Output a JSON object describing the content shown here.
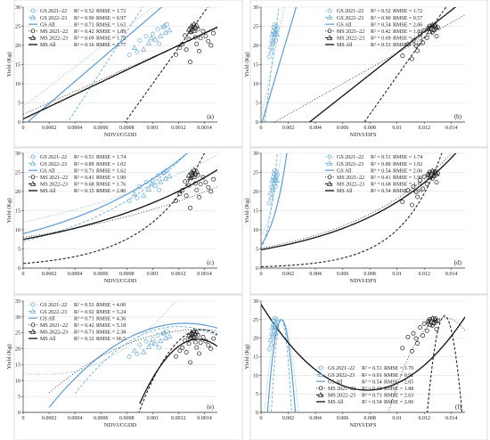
{
  "figure": {
    "note": "Six-panel figure of yield vs vegetation index with fitted models"
  },
  "chart_data": [
    {
      "type": "scatter",
      "panel_label": "(a)",
      "xlabel": "NDVI/CGDD",
      "ylabel": "Yield (Kg)",
      "xlim": [
        0,
        0.0015
      ],
      "ylim": [
        0,
        30
      ],
      "xticks": [
        0,
        0.0002,
        0.0004,
        0.0006,
        0.0008,
        0.001,
        0.0012,
        0.0014
      ],
      "xtick_labels": [
        "0",
        "0.0002",
        "0.0004",
        "0.0006",
        "0.0008",
        "0.001",
        "0.0012",
        "0.0014"
      ],
      "yticks": [
        0,
        5,
        10,
        15,
        20,
        25,
        30
      ],
      "ytick_labels": [
        "0",
        "5",
        "10",
        "15",
        "20",
        "25",
        "30"
      ],
      "legend_position": "top-left",
      "legend": [
        {
          "label": "GS 2021–22",
          "r2": "R² = 0.52",
          "rmse": "RMSE = 1.72"
        },
        {
          "label": "GS 2022–23",
          "r2": "R² = 0.90",
          "rmse": "RMSE = 0.97"
        },
        {
          "label": "GS All",
          "r2": "R² = 0.71",
          "rmse": "RMSE = 1.63"
        },
        {
          "label": "MS 2021–22",
          "r2": "R² = 0.42",
          "rmse": "RMSE = 1.89"
        },
        {
          "label": "MS 2022–23",
          "r2": "R² = 0.69",
          "rmse": "RMSE = 1.72"
        },
        {
          "label": "MS All",
          "r2": "R² = 0.16",
          "rmse": "RMSE = 2.77"
        }
      ]
    },
    {
      "type": "scatter",
      "panel_label": "(b)",
      "xlabel": "NDVI/DFS",
      "ylabel": "Yield (Kg)",
      "xlim": [
        0,
        0.015
      ],
      "ylim": [
        0,
        30
      ],
      "xticks": [
        0,
        0.002,
        0.004,
        0.006,
        0.008,
        0.01,
        0.012,
        0.014
      ],
      "xtick_labels": [
        "0",
        "0.002",
        "0.004",
        "0.006",
        "0.008",
        "0.01",
        "0.012",
        "0.014"
      ],
      "yticks": [
        0,
        5,
        10,
        15,
        20,
        25,
        30
      ],
      "ytick_labels": [
        "0",
        "5",
        "10",
        "15",
        "20",
        "25",
        "30"
      ],
      "legend_position": "top-right",
      "legend": [
        {
          "label": "GS 2021–22",
          "r2": "R² = 0.52",
          "rmse": "RMSE = 1.72"
        },
        {
          "label": "GS 2022–23",
          "r2": "R² = 0.90",
          "rmse": "RMSE = 0.57"
        },
        {
          "label": "GS All",
          "r2": "R² = 0.54",
          "rmse": "RMSE = 2.06"
        },
        {
          "label": "MS 2021–22",
          "r2": "R² = 0.42",
          "rmse": "RMSE = 1.89"
        },
        {
          "label": "MS 2022–23",
          "r2": "R² = 0.69",
          "rmse": "RMSE = 1.72"
        },
        {
          "label": "MS All",
          "r2": "R² = 0.53",
          "rmse": "RMSE = 2.07"
        }
      ]
    },
    {
      "type": "scatter",
      "panel_label": "(c)",
      "xlabel": "NDVI/CGDD",
      "ylabel": "Yield (Kg)",
      "xlim": [
        0,
        0.0015
      ],
      "ylim": [
        0,
        30
      ],
      "xticks": [
        0,
        0.0002,
        0.0004,
        0.0006,
        0.0008,
        0.001,
        0.0012,
        0.0014
      ],
      "xtick_labels": [
        "0",
        "0.0002",
        "0.0004",
        "0.0006",
        "0.0008",
        "0.001",
        "0.0012",
        "0.0014"
      ],
      "yticks": [
        0,
        5,
        10,
        15,
        20,
        25,
        30
      ],
      "ytick_labels": [
        "0",
        "5",
        "10",
        "15",
        "20",
        "25",
        "30"
      ],
      "legend_position": "top-left",
      "legend": [
        {
          "label": "GS 2021–22",
          "r2": "R² = 0.51",
          "rmse": "RMSE = 1.74"
        },
        {
          "label": "GS 2022–23",
          "r2": "R² = 0.89",
          "rmse": "RMSE = 1.02"
        },
        {
          "label": "GS All",
          "r2": "R² = 0.71",
          "rmse": "RMSE = 1.62"
        },
        {
          "label": "MS 2021–22",
          "r2": "R² = 0.41",
          "rmse": "RMSE = 1.90"
        },
        {
          "label": "MS 2022–23",
          "r2": "R² = 0.68",
          "rmse": "RMSE = 1.76"
        },
        {
          "label": "MS All",
          "r2": "R² = 0.15",
          "rmse": "RMSE = 2.80"
        }
      ]
    },
    {
      "type": "scatter",
      "panel_label": "(d)",
      "xlabel": "NDVI/DFS",
      "ylabel": "Yield (Kg)",
      "xlim": [
        0,
        0.015
      ],
      "ylim": [
        0,
        30
      ],
      "xticks": [
        0,
        0.002,
        0.004,
        0.006,
        0.008,
        0.01,
        0.012,
        0.014
      ],
      "xtick_labels": [
        "0",
        "0.002",
        "0.004",
        "0.006",
        "0.008",
        "0.01",
        "0.012",
        "0.014"
      ],
      "yticks": [
        0,
        5,
        10,
        15,
        20,
        25,
        30
      ],
      "ytick_labels": [
        "0",
        "5",
        "10",
        "15",
        "20",
        "25",
        "30"
      ],
      "legend_position": "top-right",
      "legend": [
        {
          "label": "GS 2021–22",
          "r2": "R² = 0.51",
          "rmse": "RMSE = 1.74"
        },
        {
          "label": "GS 2022–23",
          "r2": "R² = 0.89",
          "rmse": "RMSE = 1.02"
        },
        {
          "label": "GS All",
          "r2": "R² = 0.54",
          "rmse": "RMSE = 2.06"
        },
        {
          "label": "MS 2021–22",
          "r2": "R² = 0.41",
          "rmse": "RMSE = 1.90"
        },
        {
          "label": "MS 2022–23",
          "r2": "R² = 0.68",
          "rmse": "RMSE = 1.76"
        },
        {
          "label": "MS All",
          "r2": "R² = 0.54",
          "rmse": "RMSE = 2.06"
        }
      ]
    },
    {
      "type": "scatter",
      "panel_label": "(e)",
      "xlabel": "NDVI/CGDD",
      "ylabel": "Yield (Kg)",
      "xlim": [
        0,
        0.0015
      ],
      "ylim": [
        0,
        35
      ],
      "xticks": [
        0,
        0.0002,
        0.0004,
        0.0006,
        0.0008,
        0.001,
        0.0012,
        0.0014
      ],
      "xtick_labels": [
        "0",
        "0.0002",
        "0.0004",
        "0.0006",
        "0.0008",
        "0.001",
        "0.0012",
        "0.0014"
      ],
      "yticks": [
        0,
        5,
        10,
        15,
        20,
        25,
        30,
        35
      ],
      "ytick_labels": [
        "0",
        "5",
        "10",
        "15",
        "20",
        "25",
        "30",
        "35"
      ],
      "legend_position": "top-left",
      "legend": [
        {
          "label": "GS 2021–22",
          "r2": "R² = 0.53",
          "rmse": "RMSE = 4.00"
        },
        {
          "label": "GS 2022–23",
          "r2": "R² = 0.92",
          "rmse": "RMSE = 5.24"
        },
        {
          "label": "GS All",
          "r2": "R² = 0.71",
          "rmse": "RMSE = 4.36"
        },
        {
          "label": "MS 2021–22",
          "r2": "R² = 0.42",
          "rmse": "RMSE = 5.18"
        },
        {
          "label": "MS 2022–23",
          "r2": "R² = 0.71",
          "rmse": "RMSE = 2.38"
        },
        {
          "label": "MS All",
          "r2": "R² = 0.32",
          "rmse": "RMSE = 66.5"
        }
      ]
    },
    {
      "type": "scatter",
      "panel_label": "(f)",
      "xlabel": "NDVI/DFS",
      "ylabel": "Yield (Kg)",
      "xlim": [
        0,
        0.015
      ],
      "ylim": [
        0,
        30
      ],
      "xticks": [
        0,
        0.002,
        0.004,
        0.006,
        0.008,
        0.01,
        0.012,
        0.014
      ],
      "xtick_labels": [
        "0",
        "0.002",
        "0.004",
        "0.006",
        "0.008",
        "0.01",
        "0.012",
        "0.014"
      ],
      "yticks": [
        0,
        5,
        10,
        15,
        20,
        25,
        30
      ],
      "ytick_labels": [
        "0",
        "5",
        "10",
        "15",
        "20",
        "25",
        "30"
      ],
      "legend_position": "bottom-center",
      "legend": [
        {
          "label": "GS 2021–22",
          "r2": "R² = 0.53",
          "rmse": "RMSE = 1.70"
        },
        {
          "label": "GS 2022–23",
          "r2": "R² = 0.91",
          "rmse": "RMSE = 0.92"
        },
        {
          "label": "GS All",
          "r2": "R² = 0.54",
          "rmse": "RMSE = 2.05"
        },
        {
          "label": "MS 2021–22",
          "r2": "R² = 0.42",
          "rmse": "RMSE = 1.88"
        },
        {
          "label": "MS 2022–23",
          "r2": "R² = 0.71",
          "rmse": "RMSE = 2.63"
        },
        {
          "label": "MS All",
          "r2": "R² = 0.54",
          "rmse": "RMSE = 2.06"
        }
      ]
    }
  ],
  "series_styles": [
    {
      "marker": "circle",
      "color": "#6baed6",
      "dash": "1,2",
      "width": 0.8
    },
    {
      "marker": "triangle",
      "color": "#6baed6",
      "dash": "3,2",
      "width": 0.9
    },
    {
      "marker": "none",
      "color": "#5b9bd5",
      "dash": "",
      "width": 1.2
    },
    {
      "marker": "circle",
      "color": "#222222",
      "dash": "1,2",
      "width": 0.8
    },
    {
      "marker": "triangle",
      "color": "#222222",
      "dash": "3,2",
      "width": 1.1
    },
    {
      "marker": "none",
      "color": "#111111",
      "dash": "",
      "width": 1.3
    }
  ],
  "gs_points_cgdd": [
    [
      0.00082,
      17.5
    ],
    [
      0.00086,
      19.4
    ],
    [
      0.0009,
      21.3
    ],
    [
      0.00093,
      19.0
    ],
    [
      0.00095,
      22.4
    ],
    [
      0.00097,
      20.6
    ],
    [
      0.001,
      23.0
    ],
    [
      0.00102,
      21.6
    ],
    [
      0.00104,
      24.2
    ],
    [
      0.00106,
      22.5
    ],
    [
      0.00108,
      24.8
    ],
    [
      0.0011,
      23.4
    ],
    [
      0.00111,
      25.5
    ],
    [
      0.00113,
      24.0
    ],
    [
      0.00088,
      18.3
    ],
    [
      0.00099,
      21.9
    ],
    [
      0.00105,
      20.4
    ],
    [
      0.00109,
      25.1
    ]
  ],
  "gs_points_dfs": [
    [
      0.0006,
      17.0
    ],
    [
      0.0007,
      19.6
    ],
    [
      0.00078,
      21.1
    ],
    [
      0.00082,
      22.8
    ],
    [
      0.00085,
      20.3
    ],
    [
      0.0009,
      23.9
    ],
    [
      0.00093,
      24.7
    ],
    [
      0.00096,
      22.2
    ],
    [
      0.001,
      25.4
    ],
    [
      0.00103,
      23.5
    ],
    [
      0.00107,
      21.3
    ],
    [
      0.0011,
      24.1
    ],
    [
      0.00113,
      25.0
    ],
    [
      0.00117,
      22.9
    ],
    [
      0.0012,
      24.4
    ],
    [
      0.00074,
      18.4
    ],
    [
      0.00088,
      20.8
    ],
    [
      0.00098,
      23.0
    ]
  ],
  "ms_points_cgdd": [
    [
      0.00118,
      17.6
    ],
    [
      0.00121,
      19.4
    ],
    [
      0.00123,
      20.3
    ],
    [
      0.00125,
      22.6
    ],
    [
      0.00126,
      18.9
    ],
    [
      0.00128,
      21.6
    ],
    [
      0.0013,
      23.5
    ],
    [
      0.00131,
      24.8
    ],
    [
      0.00133,
      22.1
    ],
    [
      0.00134,
      20.4
    ],
    [
      0.00135,
      24.2
    ],
    [
      0.00137,
      21.9
    ],
    [
      0.00139,
      23.7
    ],
    [
      0.00141,
      22.4
    ],
    [
      0.00143,
      21.1
    ],
    [
      0.00145,
      20.0
    ],
    [
      0.00129,
      15.7
    ],
    [
      0.00136,
      18.5
    ],
    [
      0.00147,
      23.2
    ]
  ],
  "ms_points_dfs": [
    [
      0.0104,
      17.3
    ],
    [
      0.0108,
      20.3
    ],
    [
      0.0112,
      21.3
    ],
    [
      0.0115,
      18.6
    ],
    [
      0.0117,
      22.9
    ],
    [
      0.0119,
      20.7
    ],
    [
      0.012,
      23.9
    ],
    [
      0.0122,
      22.0
    ],
    [
      0.0123,
      24.6
    ],
    [
      0.0124,
      25.1
    ],
    [
      0.0126,
      23.4
    ],
    [
      0.0127,
      24.0
    ],
    [
      0.0129,
      22.4
    ],
    [
      0.013,
      24.7
    ],
    [
      0.0111,
      16.5
    ],
    [
      0.0114,
      19.9
    ],
    [
      0.0128,
      25.3
    ]
  ],
  "ms_tri_cgdd": [
    [
      0.00128,
      24.2
    ],
    [
      0.0013,
      25.1
    ],
    [
      0.00131,
      24.4
    ],
    [
      0.00132,
      25.6
    ],
    [
      0.00133,
      24.7
    ],
    [
      0.00134,
      25.3
    ],
    [
      0.00129,
      23.6
    ],
    [
      0.00132,
      23.9
    ]
  ],
  "ms_tri_dfs": [
    [
      0.0123,
      24.3
    ],
    [
      0.0125,
      24.9
    ],
    [
      0.0126,
      25.4
    ],
    [
      0.0127,
      24.2
    ],
    [
      0.0128,
      25.0
    ],
    [
      0.0129,
      24.6
    ],
    [
      0.0124,
      23.7
    ]
  ]
}
